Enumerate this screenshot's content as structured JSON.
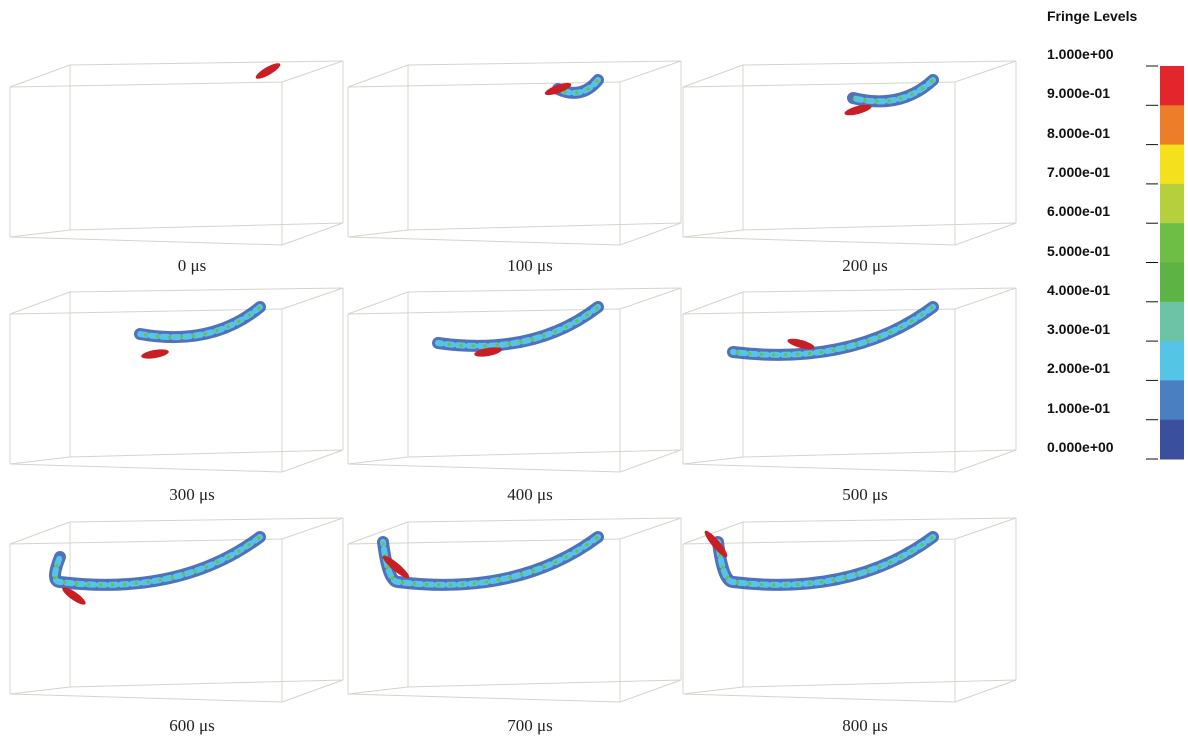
{
  "panels": [
    {
      "label": "0 μs"
    },
    {
      "label": "100 μs"
    },
    {
      "label": "200 μs"
    },
    {
      "label": "300 μs"
    },
    {
      "label": "400 μs"
    },
    {
      "label": "500 μs"
    },
    {
      "label": "600 μs"
    },
    {
      "label": "700 μs"
    },
    {
      "label": "800 μs"
    }
  ],
  "legend": {
    "title": "Fringe Levels",
    "levels": [
      "1.000e+00",
      "9.000e-01",
      "8.000e-01",
      "7.000e-01",
      "6.000e-01",
      "5.000e-01",
      "4.000e-01",
      "3.000e-01",
      "2.000e-01",
      "1.000e-01",
      "0.000e+00"
    ],
    "colors": [
      "#e3262b",
      "#ee7d2a",
      "#f5e01c",
      "#b6cf3c",
      "#6ebe46",
      "#5db444",
      "#6dc3a5",
      "#55c5e6",
      "#4a7fc1",
      "#3b4f9f"
    ]
  }
}
